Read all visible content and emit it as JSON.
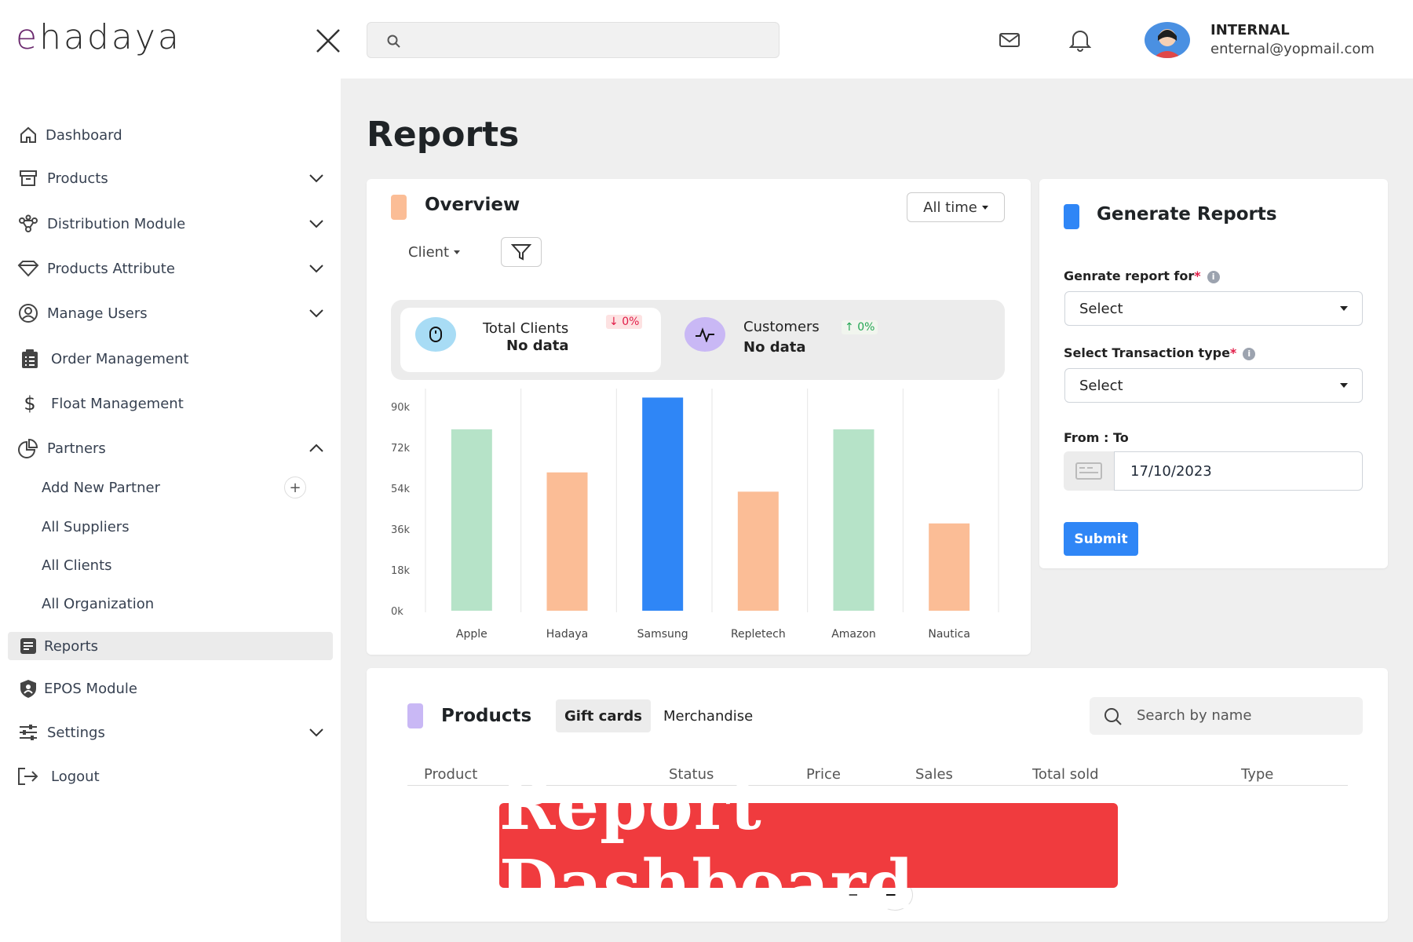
{
  "header": {
    "logo": "hadaya",
    "logo_e": "e",
    "user_name": "INTERNAL",
    "user_email": "enternal@yopmail.com"
  },
  "sidebar": {
    "items": [
      {
        "label": "Dashboard",
        "icon": "home-icon"
      },
      {
        "label": "Products",
        "icon": "box-icon",
        "expandable": true
      },
      {
        "label": "Distribution Module",
        "icon": "network-icon",
        "expandable": true
      },
      {
        "label": "Products Attribute",
        "icon": "diamond-icon",
        "expandable": true
      },
      {
        "label": "Manage Users",
        "icon": "user-circle-icon",
        "expandable": true
      },
      {
        "label": "Order Management",
        "icon": "clipboard-icon"
      },
      {
        "label": "Float Management",
        "icon": "dollar-icon"
      },
      {
        "label": "Partners",
        "icon": "pie-icon",
        "expanded": true
      },
      {
        "label": "Add New Partner"
      },
      {
        "label": "All Suppliers"
      },
      {
        "label": "All Clients"
      },
      {
        "label": "All Organization"
      },
      {
        "label": "Reports",
        "icon": "report-icon",
        "active": true
      },
      {
        "label": "EPOS Module",
        "icon": "shield-icon"
      },
      {
        "label": "Settings",
        "icon": "sliders-icon",
        "expandable": true
      },
      {
        "label": "Logout",
        "icon": "logout-icon"
      }
    ]
  },
  "page": {
    "title": "Reports"
  },
  "overview": {
    "title": "Overview",
    "range": "All time",
    "filter_label": "Client",
    "stats": [
      {
        "label": "Total Clients",
        "value": "No data",
        "change": "0%",
        "trend": "down"
      },
      {
        "label": "Customers",
        "value": "No data",
        "change": "0%",
        "trend": "up"
      }
    ]
  },
  "chart_data": {
    "type": "bar",
    "categories": [
      "Apple",
      "Hadaya",
      "Samsung",
      "Repletech",
      "Amazon",
      "Nautica"
    ],
    "values": [
      80000,
      61000,
      94000,
      52500,
      80000,
      38500
    ],
    "colors": [
      "#b6e3c8",
      "#fbbd96",
      "#2f86f6",
      "#fbbd96",
      "#b6e3c8",
      "#fbbd96"
    ],
    "yticks": [
      "90k",
      "72k",
      "54k",
      "36k",
      "18k",
      "0k"
    ],
    "ylim": [
      0,
      90000
    ],
    "grid": "vertical"
  },
  "generate": {
    "title": "Generate Reports",
    "report_for_label": "Genrate report for",
    "report_for_value": "Select",
    "txn_label": "Select Transaction type",
    "txn_value": "Select",
    "required_mark": "*",
    "info_mark": "i",
    "range_label": "From : To",
    "date_value": "17/10/2023",
    "submit": "Submit"
  },
  "products": {
    "title": "Products",
    "tabs": [
      "Gift cards",
      "Merchandise"
    ],
    "search_placeholder": "Search by name",
    "columns": [
      "Product",
      "Status",
      "Price",
      "Sales",
      "Total sold",
      "Type"
    ]
  },
  "banner": {
    "text": "Report Dashboard"
  },
  "colors": {
    "accent": "#2f86f6",
    "peach": "#fbbd96",
    "mint": "#b6e3c8",
    "lavender": "#c9b8f5",
    "banner": "#f03b3e"
  }
}
